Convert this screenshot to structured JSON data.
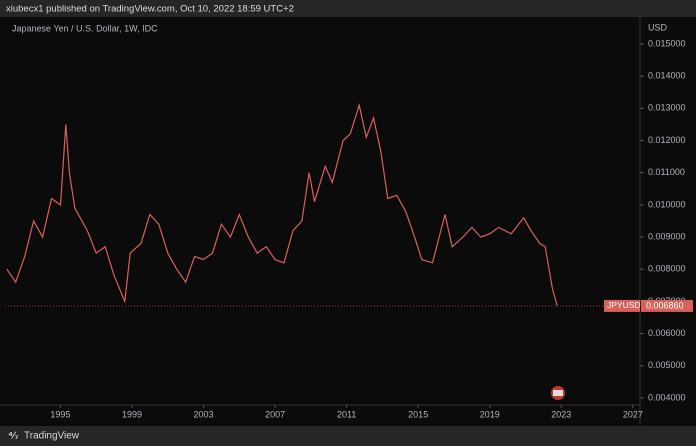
{
  "header": {
    "text": "xiubecx1 published on TradingView.com, Oct 10, 2022 18:59 UTC+2"
  },
  "chart_data": {
    "type": "line",
    "title": "Japanese Yen / U.S. Dollar, 1W, IDC",
    "y_axis_label": "USD",
    "x": [
      1992.0,
      1992.5,
      1993.0,
      1993.5,
      1994.0,
      1994.5,
      1995.0,
      1995.3,
      1995.5,
      1995.8,
      1996.5,
      1997.0,
      1997.5,
      1998.0,
      1998.6,
      1998.9,
      1999.5,
      2000.0,
      2000.5,
      2001.0,
      2001.5,
      2002.0,
      2002.5,
      2003.0,
      2003.5,
      2004.0,
      2004.5,
      2005.0,
      2005.5,
      2006.0,
      2006.5,
      2007.0,
      2007.5,
      2008.0,
      2008.5,
      2008.9,
      2009.2,
      2009.8,
      2010.2,
      2010.8,
      2011.2,
      2011.7,
      2012.1,
      2012.5,
      2012.9,
      2013.3,
      2013.8,
      2014.3,
      2014.8,
      2015.2,
      2015.8,
      2016.5,
      2016.9,
      2017.5,
      2018.0,
      2018.5,
      2019.0,
      2019.5,
      2020.2,
      2020.9,
      2021.3,
      2021.8,
      2022.1,
      2022.5,
      2022.77
    ],
    "series": [
      {
        "name": "JPYUSD",
        "color": "#d9615c",
        "values": [
          0.008,
          0.0076,
          0.0084,
          0.0095,
          0.009,
          0.0102,
          0.01,
          0.0125,
          0.011,
          0.0099,
          0.0092,
          0.0085,
          0.0087,
          0.0078,
          0.007,
          0.0085,
          0.0088,
          0.0097,
          0.0094,
          0.0085,
          0.008,
          0.0076,
          0.0084,
          0.0083,
          0.0085,
          0.0094,
          0.009,
          0.0097,
          0.009,
          0.0085,
          0.0087,
          0.0083,
          0.0082,
          0.0092,
          0.0095,
          0.011,
          0.0101,
          0.0112,
          0.0107,
          0.012,
          0.0122,
          0.0131,
          0.0121,
          0.0127,
          0.0117,
          0.0102,
          0.0103,
          0.0098,
          0.009,
          0.0083,
          0.0082,
          0.0097,
          0.0087,
          0.009,
          0.0093,
          0.009,
          0.0091,
          0.0093,
          0.0091,
          0.0096,
          0.0092,
          0.0088,
          0.0087,
          0.0074,
          0.00686
        ]
      }
    ],
    "last_value_label": "0.006860",
    "xlim": [
      1991.9,
      2027.4
    ],
    "xticks": [
      1995,
      1999,
      2003,
      2007,
      2011,
      2015,
      2019,
      2023,
      2027
    ],
    "ylim": [
      0.00378,
      0.01584
    ],
    "yticks": [
      {
        "value": 0.004,
        "label": "0.004000"
      },
      {
        "value": 0.005,
        "label": "0.005000"
      },
      {
        "value": 0.006,
        "label": "0.006000"
      },
      {
        "value": 0.007,
        "label": "0.007000"
      },
      {
        "value": 0.008,
        "label": "0.008000"
      },
      {
        "value": 0.009,
        "label": "0.009000"
      },
      {
        "value": 0.01,
        "label": "0.010000"
      },
      {
        "value": 0.011,
        "label": "0.011000"
      },
      {
        "value": 0.012,
        "label": "0.012000"
      },
      {
        "value": 0.013,
        "label": "0.013000"
      },
      {
        "value": 0.014,
        "label": "0.014000"
      },
      {
        "value": 0.015,
        "label": "0.015000"
      }
    ],
    "grid": false
  },
  "footer": {
    "brand": "TradingView"
  }
}
